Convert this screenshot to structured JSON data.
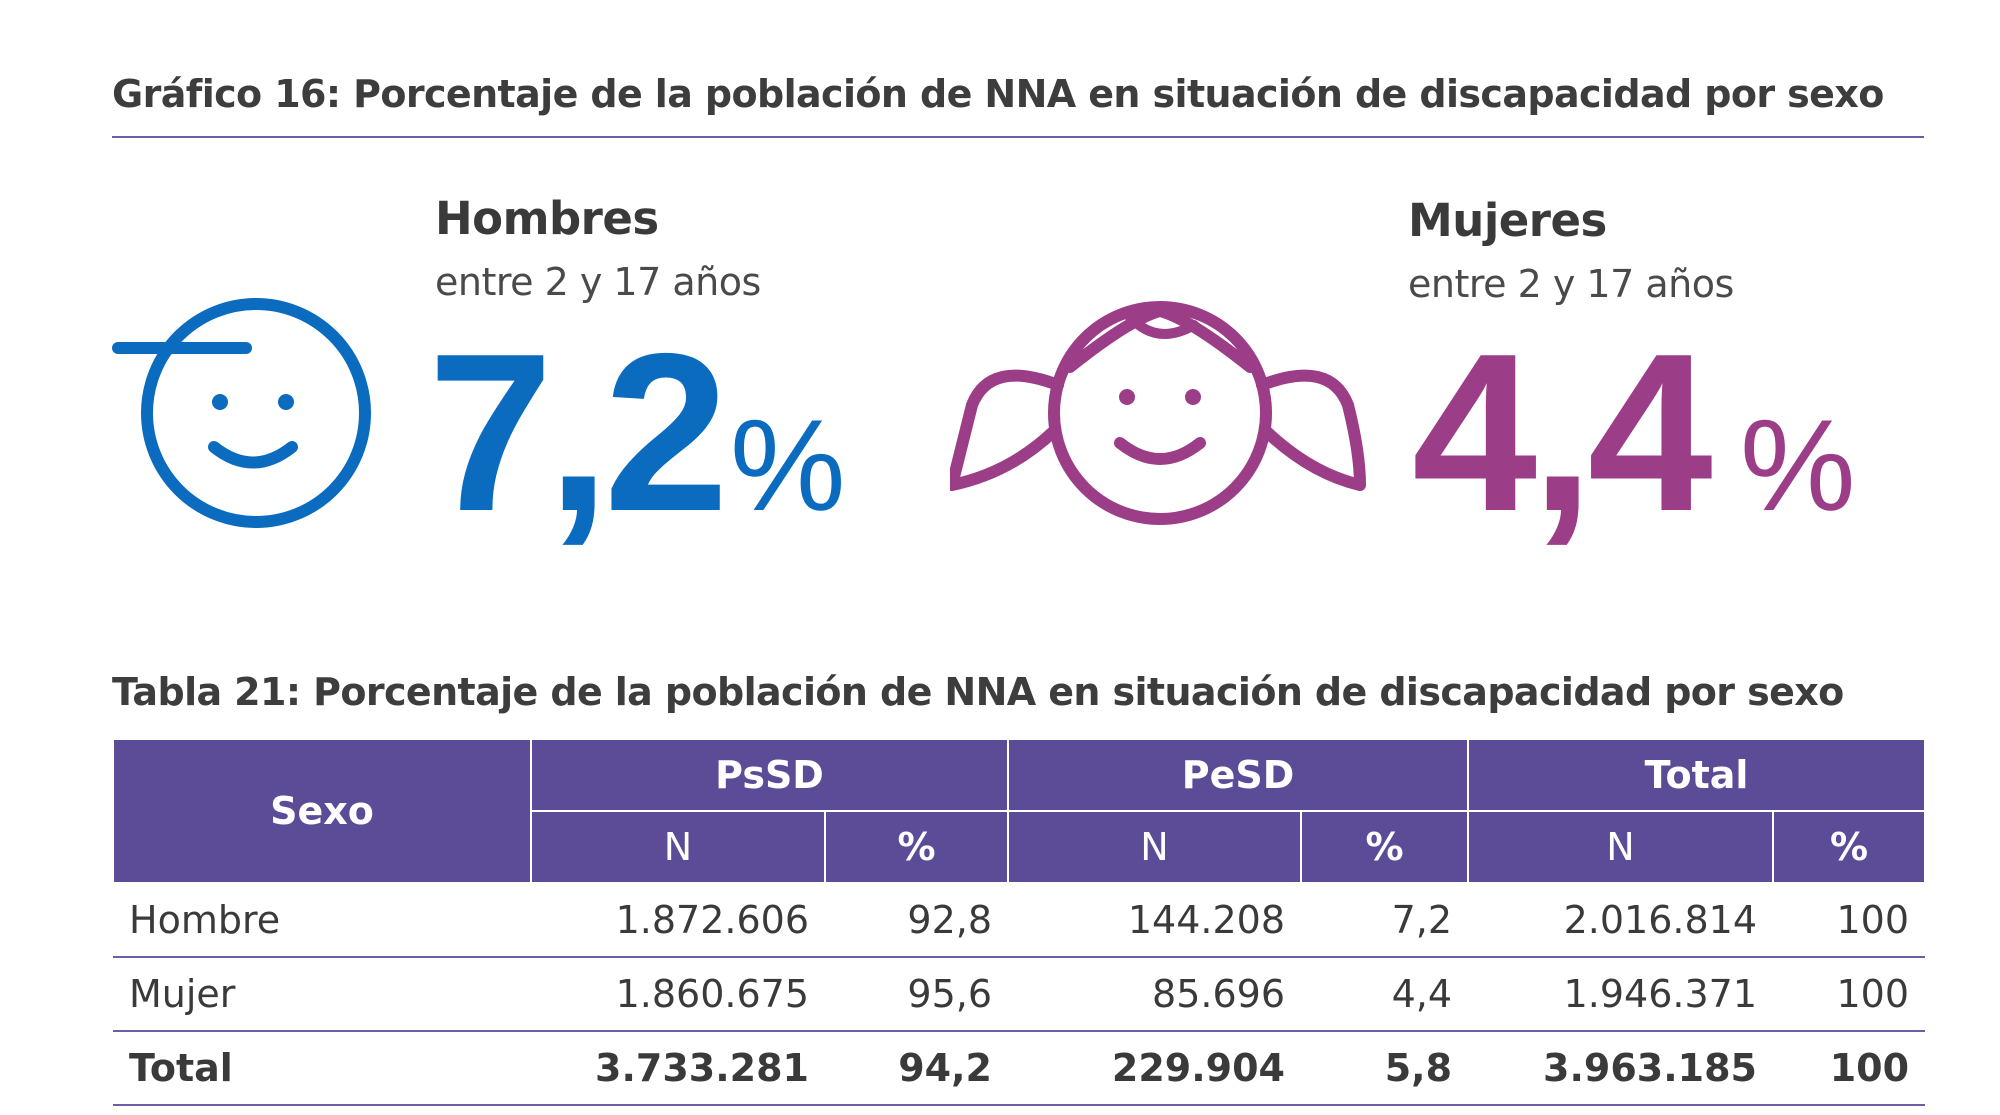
{
  "figure": {
    "title": "Gráfico 16: Porcentaje de la población de NNA en situación de discapacidad por sexo",
    "men": {
      "label": "Hombres",
      "age_range": "entre 2 y 17 años",
      "value": "7,2",
      "percent_sign": "%",
      "icon": "boy-face-icon",
      "color": "#0b6cbf"
    },
    "women": {
      "label": "Mujeres",
      "age_range": "entre 2 y 17 años",
      "value": "4,4",
      "percent_sign": "%",
      "icon": "girl-face-icon",
      "color": "#9c3d87"
    }
  },
  "table": {
    "title": "Tabla 21: Porcentaje de la población de NNA en situación de discapacidad por sexo",
    "header_color": "#5c4b96",
    "headers": {
      "sexo": "Sexo",
      "groups": [
        "PsSD",
        "PeSD",
        "Total"
      ],
      "sub": [
        "N",
        "%",
        "N",
        "%",
        "N",
        "%"
      ]
    },
    "rows": [
      {
        "label": "Hombre",
        "cells": [
          "1.872.606",
          "92,8",
          "144.208",
          "7,2",
          "2.016.814",
          "100"
        ]
      },
      {
        "label": "Mujer",
        "cells": [
          "1.860.675",
          "95,6",
          "85.696",
          "4,4",
          "1.946.371",
          "100"
        ]
      }
    ],
    "total": {
      "label": "Total",
      "cells": [
        "3.733.281",
        "94,2",
        "229.904",
        "5,8",
        "3.963.185",
        "100"
      ]
    }
  }
}
